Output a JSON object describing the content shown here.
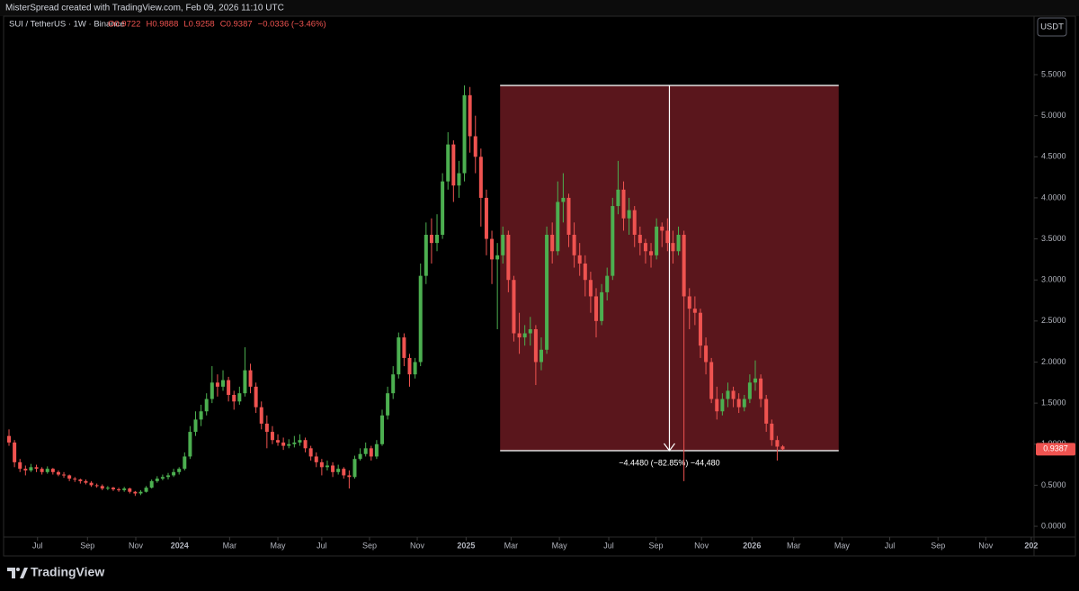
{
  "chart_data": {
    "type": "candlestick",
    "credit": "MisterSpread created with TradingView.com, Feb 09, 2026 11:10 UTC",
    "symbol": "SUI / TetherUS · 1W · Binance",
    "legend_values": [
      "O0.9722",
      "H0.9888",
      "L0.9258",
      "C0.9387",
      "−0.0336 (−3.46%)"
    ],
    "currency": "USDT",
    "brand": "TradingView",
    "up_color": "#4caf50",
    "down_color": "#ef5350",
    "ohlc": [
      [
        1.1,
        1.18,
        0.98,
        1.02
      ],
      [
        1.02,
        1.05,
        0.72,
        0.78
      ],
      [
        0.78,
        0.82,
        0.66,
        0.7
      ],
      [
        0.7,
        0.74,
        0.62,
        0.68
      ],
      [
        0.68,
        0.76,
        0.66,
        0.72
      ],
      [
        0.72,
        0.75,
        0.66,
        0.7
      ],
      [
        0.7,
        0.72,
        0.63,
        0.66
      ],
      [
        0.66,
        0.73,
        0.64,
        0.7
      ],
      [
        0.7,
        0.71,
        0.63,
        0.66
      ],
      [
        0.66,
        0.68,
        0.61,
        0.63
      ],
      [
        0.63,
        0.66,
        0.59,
        0.62
      ],
      [
        0.62,
        0.63,
        0.55,
        0.58
      ],
      [
        0.58,
        0.6,
        0.54,
        0.57
      ],
      [
        0.57,
        0.58,
        0.52,
        0.55
      ],
      [
        0.55,
        0.57,
        0.51,
        0.53
      ],
      [
        0.53,
        0.55,
        0.48,
        0.5
      ],
      [
        0.5,
        0.52,
        0.47,
        0.49
      ],
      [
        0.49,
        0.51,
        0.44,
        0.46
      ],
      [
        0.46,
        0.49,
        0.44,
        0.47
      ],
      [
        0.47,
        0.48,
        0.43,
        0.45
      ],
      [
        0.45,
        0.47,
        0.42,
        0.44
      ],
      [
        0.44,
        0.48,
        0.42,
        0.46
      ],
      [
        0.46,
        0.47,
        0.4,
        0.42
      ],
      [
        0.42,
        0.43,
        0.37,
        0.4
      ],
      [
        0.4,
        0.44,
        0.38,
        0.42
      ],
      [
        0.42,
        0.49,
        0.41,
        0.47
      ],
      [
        0.47,
        0.57,
        0.46,
        0.55
      ],
      [
        0.55,
        0.61,
        0.53,
        0.58
      ],
      [
        0.58,
        0.63,
        0.56,
        0.6
      ],
      [
        0.6,
        0.65,
        0.57,
        0.62
      ],
      [
        0.62,
        0.7,
        0.6,
        0.66
      ],
      [
        0.66,
        0.72,
        0.63,
        0.7
      ],
      [
        0.7,
        0.9,
        0.68,
        0.85
      ],
      [
        0.85,
        1.22,
        0.82,
        1.15
      ],
      [
        1.15,
        1.4,
        1.1,
        1.3
      ],
      [
        1.3,
        1.48,
        1.22,
        1.4
      ],
      [
        1.4,
        1.62,
        1.35,
        1.55
      ],
      [
        1.55,
        1.95,
        1.5,
        1.75
      ],
      [
        1.75,
        1.85,
        1.58,
        1.7
      ],
      [
        1.7,
        1.9,
        1.65,
        1.78
      ],
      [
        1.78,
        1.82,
        1.52,
        1.6
      ],
      [
        1.6,
        1.65,
        1.42,
        1.52
      ],
      [
        1.52,
        1.7,
        1.48,
        1.62
      ],
      [
        1.62,
        2.18,
        1.58,
        1.9
      ],
      [
        1.9,
        1.98,
        1.62,
        1.7
      ],
      [
        1.7,
        1.75,
        1.38,
        1.45
      ],
      [
        1.45,
        1.52,
        1.18,
        1.25
      ],
      [
        1.25,
        1.35,
        0.95,
        1.15
      ],
      [
        1.15,
        1.22,
        1.0,
        1.05
      ],
      [
        1.05,
        1.12,
        0.98,
        1.02
      ],
      [
        1.02,
        1.08,
        0.93,
        0.98
      ],
      [
        0.98,
        1.06,
        0.95,
        1.0
      ],
      [
        1.0,
        1.1,
        0.96,
        1.02
      ],
      [
        1.02,
        1.12,
        0.98,
        1.05
      ],
      [
        1.05,
        1.08,
        0.9,
        0.95
      ],
      [
        0.95,
        0.98,
        0.8,
        0.85
      ],
      [
        0.85,
        0.9,
        0.72,
        0.78
      ],
      [
        0.78,
        0.82,
        0.62,
        0.72
      ],
      [
        0.72,
        0.8,
        0.68,
        0.74
      ],
      [
        0.74,
        0.78,
        0.6,
        0.66
      ],
      [
        0.66,
        0.75,
        0.63,
        0.7
      ],
      [
        0.7,
        0.72,
        0.58,
        0.62
      ],
      [
        0.62,
        0.68,
        0.46,
        0.6
      ],
      [
        0.6,
        0.86,
        0.58,
        0.82
      ],
      [
        0.82,
        0.95,
        0.8,
        0.88
      ],
      [
        0.88,
        1.02,
        0.85,
        0.95
      ],
      [
        0.95,
        0.98,
        0.8,
        0.85
      ],
      [
        0.85,
        1.05,
        0.82,
        1.0
      ],
      [
        1.0,
        1.42,
        0.98,
        1.35
      ],
      [
        1.35,
        1.7,
        1.3,
        1.62
      ],
      [
        1.62,
        1.95,
        1.55,
        1.85
      ],
      [
        1.85,
        2.36,
        1.8,
        2.3
      ],
      [
        2.3,
        2.35,
        1.95,
        2.05
      ],
      [
        2.05,
        2.1,
        1.7,
        1.85
      ],
      [
        1.85,
        2.05,
        1.8,
        2.0
      ],
      [
        2.0,
        3.2,
        1.95,
        3.05
      ],
      [
        3.05,
        3.7,
        2.95,
        3.55
      ],
      [
        3.55,
        3.75,
        3.2,
        3.45
      ],
      [
        3.45,
        3.8,
        3.35,
        3.55
      ],
      [
        3.55,
        4.3,
        3.5,
        4.2
      ],
      [
        4.2,
        4.8,
        4.1,
        4.65
      ],
      [
        4.65,
        4.7,
        3.95,
        4.15
      ],
      [
        4.15,
        4.45,
        4.0,
        4.3
      ],
      [
        4.3,
        5.37,
        4.2,
        5.25
      ],
      [
        5.25,
        5.35,
        4.55,
        4.75
      ],
      [
        4.75,
        5.0,
        4.3,
        4.5
      ],
      [
        4.5,
        4.6,
        3.65,
        4.0
      ],
      [
        4.0,
        4.1,
        3.3,
        3.5
      ],
      [
        3.5,
        3.6,
        2.95,
        3.25
      ],
      [
        3.25,
        3.45,
        2.4,
        3.3
      ],
      [
        3.3,
        3.65,
        3.2,
        3.55
      ],
      [
        3.55,
        3.6,
        2.85,
        3.0
      ],
      [
        3.0,
        3.05,
        2.25,
        2.35
      ],
      [
        2.35,
        2.6,
        2.1,
        2.3
      ],
      [
        2.3,
        2.45,
        2.2,
        2.35
      ],
      [
        2.35,
        2.55,
        2.2,
        2.4
      ],
      [
        2.4,
        2.45,
        1.72,
        2.0
      ],
      [
        2.0,
        2.3,
        1.9,
        2.15
      ],
      [
        2.15,
        3.65,
        2.1,
        3.55
      ],
      [
        3.55,
        3.7,
        3.2,
        3.35
      ],
      [
        3.35,
        4.2,
        3.3,
        3.95
      ],
      [
        3.95,
        4.3,
        3.7,
        4.0
      ],
      [
        4.0,
        4.05,
        3.4,
        3.55
      ],
      [
        3.55,
        3.7,
        3.15,
        3.3
      ],
      [
        3.3,
        3.45,
        3.05,
        3.2
      ],
      [
        3.2,
        3.3,
        2.8,
        3.0
      ],
      [
        3.0,
        3.1,
        2.6,
        2.8
      ],
      [
        2.8,
        2.9,
        2.3,
        2.5
      ],
      [
        2.5,
        2.95,
        2.45,
        2.85
      ],
      [
        2.85,
        3.15,
        2.75,
        3.05
      ],
      [
        3.05,
        4.0,
        3.0,
        3.9
      ],
      [
        3.9,
        4.45,
        3.8,
        4.1
      ],
      [
        4.1,
        4.2,
        3.6,
        3.75
      ],
      [
        3.75,
        4.0,
        3.55,
        3.85
      ],
      [
        3.85,
        3.9,
        3.4,
        3.55
      ],
      [
        3.55,
        3.65,
        3.3,
        3.45
      ],
      [
        3.45,
        3.5,
        3.2,
        3.35
      ],
      [
        3.35,
        3.45,
        3.15,
        3.3
      ],
      [
        3.3,
        3.75,
        3.25,
        3.65
      ],
      [
        3.65,
        3.7,
        3.4,
        3.6
      ],
      [
        3.6,
        3.75,
        3.35,
        3.45
      ],
      [
        3.45,
        3.6,
        3.2,
        3.35
      ],
      [
        3.35,
        3.65,
        3.3,
        3.55
      ],
      [
        3.55,
        3.6,
        0.55,
        2.8
      ],
      [
        2.8,
        2.9,
        2.4,
        2.65
      ],
      [
        2.65,
        2.8,
        2.45,
        2.6
      ],
      [
        2.6,
        2.65,
        2.05,
        2.2
      ],
      [
        2.2,
        2.3,
        1.85,
        2.0
      ],
      [
        2.0,
        2.05,
        1.5,
        1.55
      ],
      [
        1.55,
        1.7,
        1.3,
        1.4
      ],
      [
        1.4,
        1.62,
        1.35,
        1.55
      ],
      [
        1.55,
        1.75,
        1.45,
        1.65
      ],
      [
        1.65,
        1.7,
        1.45,
        1.55
      ],
      [
        1.55,
        1.62,
        1.38,
        1.45
      ],
      [
        1.45,
        1.6,
        1.4,
        1.55
      ],
      [
        1.55,
        1.85,
        1.5,
        1.75
      ],
      [
        1.75,
        2.02,
        1.65,
        1.8
      ],
      [
        1.8,
        1.85,
        1.45,
        1.55
      ],
      [
        1.55,
        1.6,
        1.15,
        1.25
      ],
      [
        1.25,
        1.3,
        0.98,
        1.05
      ],
      [
        1.05,
        1.1,
        0.8,
        0.97
      ],
      [
        0.9722,
        0.9888,
        0.9258,
        0.9387
      ]
    ],
    "xlim": [
      -0.33,
      186.8
    ],
    "xticks": [
      {
        "value": 5.2,
        "label": "Jul"
      },
      {
        "value": 14.3,
        "label": "Sep"
      },
      {
        "value": 23.1,
        "label": "Nov"
      },
      {
        "value": 31.1,
        "label": "2024"
      },
      {
        "value": 40.2,
        "label": "Mar"
      },
      {
        "value": 49.0,
        "label": "May"
      },
      {
        "value": 57.0,
        "label": "Jul"
      },
      {
        "value": 65.7,
        "label": "Sep"
      },
      {
        "value": 74.4,
        "label": "Nov"
      },
      {
        "value": 83.3,
        "label": "2025"
      },
      {
        "value": 91.5,
        "label": "Mar"
      },
      {
        "value": 100.3,
        "label": "May"
      },
      {
        "value": 109.3,
        "label": "Jul"
      },
      {
        "value": 117.9,
        "label": "Sep"
      },
      {
        "value": 126.2,
        "label": "Nov"
      },
      {
        "value": 135.4,
        "label": "2026"
      },
      {
        "value": 143.0,
        "label": "Mar"
      },
      {
        "value": 151.8,
        "label": "May"
      },
      {
        "value": 160.5,
        "label": "Jul"
      },
      {
        "value": 169.3,
        "label": "Sep"
      },
      {
        "value": 178.0,
        "label": "Nov"
      },
      {
        "value": 186.3,
        "label": "202"
      }
    ],
    "ylim": [
      -0.131,
      6.026
    ],
    "yticks": [
      {
        "value": 0,
        "label": "0.0000"
      },
      {
        "value": 0.5,
        "label": "0.5000"
      },
      {
        "value": 1,
        "label": "1.0000"
      },
      {
        "value": 1.5,
        "label": "1.5000"
      },
      {
        "value": 2,
        "label": "2.0000"
      },
      {
        "value": 2.5,
        "label": "2.5000"
      },
      {
        "value": 3,
        "label": "3.0000"
      },
      {
        "value": 3.5,
        "label": "3.5000"
      },
      {
        "value": 4,
        "label": "4.0000"
      },
      {
        "value": 4.5,
        "label": "4.5000"
      },
      {
        "value": 5,
        "label": "5.0000"
      },
      {
        "value": 5.5,
        "label": "5.5000"
      }
    ],
    "measure": {
      "high": 5.3687,
      "low": 0.9207,
      "x_start": 89.5,
      "x_end": 151.2,
      "label": "−4.4480 (−82.85%) −44,480",
      "color": "#5a161c"
    }
  }
}
